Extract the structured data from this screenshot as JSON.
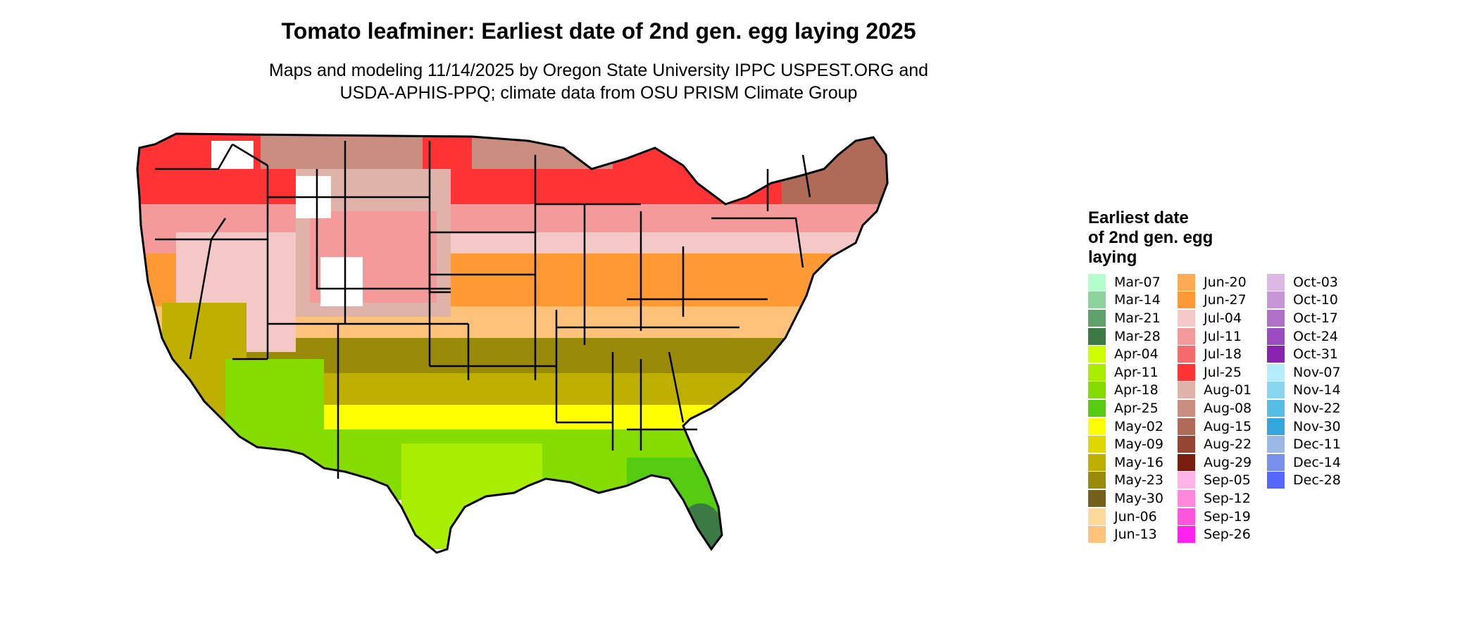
{
  "title": "Tomato leafminer: Earliest date of 2nd gen. egg laying 2025",
  "subtitle_line1": "Maps and modeling 11/14/2025 by Oregon State University IPPC USPEST.ORG and",
  "subtitle_line2": "USDA-APHIS-PPQ; climate data from OSU PRISM Climate Group",
  "legend": {
    "title_line1": "Earliest date",
    "title_line2": "of 2nd gen. egg",
    "title_line3": "laying",
    "columns": [
      [
        {
          "label": "Mar-07",
          "color": "#b3ffcc"
        },
        {
          "label": "Mar-14",
          "color": "#8ed29e"
        },
        {
          "label": "Mar-21",
          "color": "#5fa06b"
        },
        {
          "label": "Mar-28",
          "color": "#3b7a45"
        },
        {
          "label": "Apr-04",
          "color": "#ccff00"
        },
        {
          "label": "Apr-11",
          "color": "#a9ee00"
        },
        {
          "label": "Apr-18",
          "color": "#85dd00"
        },
        {
          "label": "Apr-25",
          "color": "#55cc11"
        },
        {
          "label": "May-02",
          "color": "#ffff00"
        },
        {
          "label": "May-09",
          "color": "#dfd800"
        },
        {
          "label": "May-16",
          "color": "#bfb000"
        },
        {
          "label": "May-23",
          "color": "#9a8a0a"
        },
        {
          "label": "May-30",
          "color": "#74601a"
        },
        {
          "label": "Jun-06",
          "color": "#ffd99a"
        },
        {
          "label": "Jun-13",
          "color": "#ffc27a"
        }
      ],
      [
        {
          "label": "Jun-20",
          "color": "#ffaa55"
        },
        {
          "label": "Jun-27",
          "color": "#ff9933"
        },
        {
          "label": "Jul-04",
          "color": "#f5c8c8"
        },
        {
          "label": "Jul-11",
          "color": "#f59a9a"
        },
        {
          "label": "Jul-18",
          "color": "#f56a6a"
        },
        {
          "label": "Jul-25",
          "color": "#ff3333"
        },
        {
          "label": "Aug-01",
          "color": "#e0b3aa"
        },
        {
          "label": "Aug-08",
          "color": "#c98e80"
        },
        {
          "label": "Aug-15",
          "color": "#b06a58"
        },
        {
          "label": "Aug-22",
          "color": "#964433"
        },
        {
          "label": "Aug-29",
          "color": "#7a1e10"
        },
        {
          "label": "Sep-05",
          "color": "#ffb3e6"
        },
        {
          "label": "Sep-12",
          "color": "#ff88dd"
        },
        {
          "label": "Sep-19",
          "color": "#ff55dd"
        },
        {
          "label": "Sep-26",
          "color": "#ff22ee"
        }
      ],
      [
        {
          "label": "Oct-03",
          "color": "#dbb8e6"
        },
        {
          "label": "Oct-10",
          "color": "#c896d6"
        },
        {
          "label": "Oct-17",
          "color": "#b070c8"
        },
        {
          "label": "Oct-24",
          "color": "#9c4cc0"
        },
        {
          "label": "Oct-31",
          "color": "#8a22b0"
        },
        {
          "label": "Nov-07",
          "color": "#b3eeff"
        },
        {
          "label": "Nov-14",
          "color": "#88d6f0"
        },
        {
          "label": "Nov-22",
          "color": "#55bde6"
        },
        {
          "label": "Nov-30",
          "color": "#33a6dd"
        },
        {
          "label": "Dec-11",
          "color": "#99b8e6"
        },
        {
          "label": "Dec-14",
          "color": "#7791ea"
        },
        {
          "label": "Dec-28",
          "color": "#5566ff"
        }
      ]
    ]
  }
}
